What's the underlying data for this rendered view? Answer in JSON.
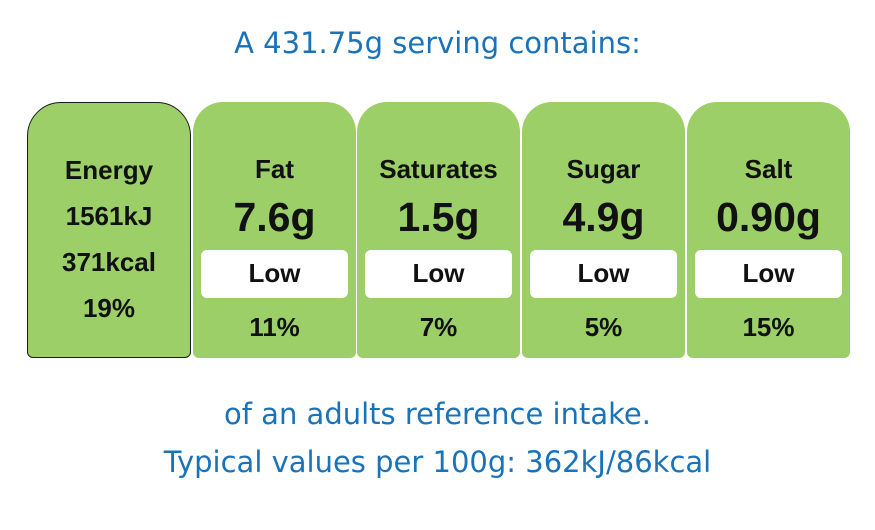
{
  "colors": {
    "panel_green": "#9ccf68",
    "text_blue": "#1a73b9",
    "level_box": "#ffffff"
  },
  "header": "A 431.75g serving contains:",
  "energy": {
    "label": "Energy",
    "kj": "1561kJ",
    "kcal": "371kcal",
    "percent": "19%"
  },
  "nutrients": [
    {
      "name": "Fat",
      "amount": "7.6g",
      "level": "Low",
      "percent": "11%"
    },
    {
      "name": "Saturates",
      "amount": "1.5g",
      "level": "Low",
      "percent": "7%"
    },
    {
      "name": "Sugar",
      "amount": "4.9g",
      "level": "Low",
      "percent": "5%"
    },
    {
      "name": "Salt",
      "amount": "0.90g",
      "level": "Low",
      "percent": "15%"
    }
  ],
  "footer": {
    "line1": "of an adults reference intake.",
    "line2": "Typical values per 100g: 362kJ/86kcal"
  }
}
